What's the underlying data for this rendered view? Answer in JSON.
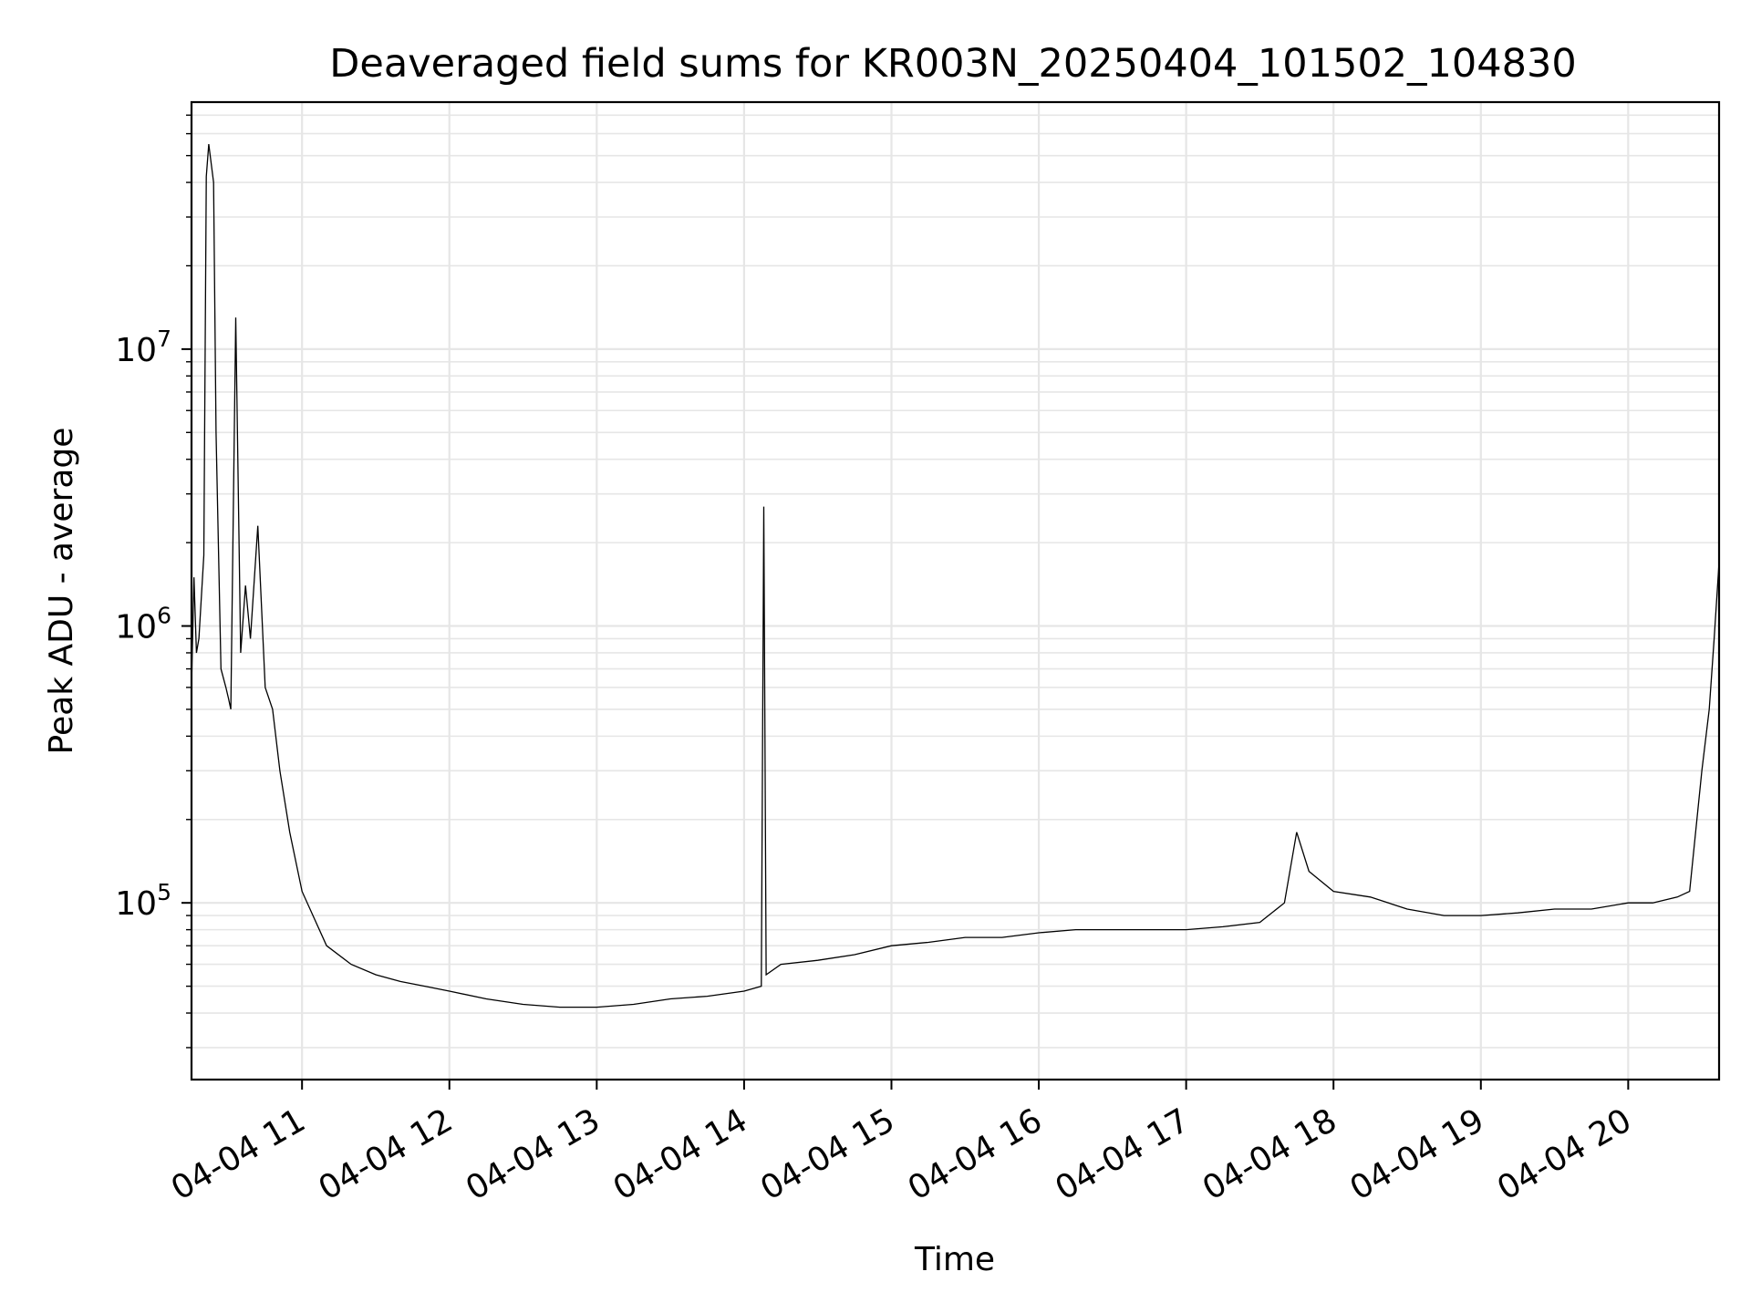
{
  "chart_data": {
    "type": "line",
    "title": "Deaveraged field sums for KR003N_20250404_101502_104830",
    "xlabel": "Time",
    "ylabel": "Peak ADU - average",
    "yscale": "log",
    "ylim": [
      23000,
      78000000
    ],
    "xlim": [
      "04-04 10:15",
      "04-04 20:37"
    ],
    "grid": true,
    "line_color": "#000000",
    "x_ticks": [
      "04-04 11",
      "04-04 12",
      "04-04 13",
      "04-04 14",
      "04-04 15",
      "04-04 16",
      "04-04 17",
      "04-04 18",
      "04-04 19",
      "04-04 20"
    ],
    "y_ticks": [
      {
        "base": "10",
        "exp": "5",
        "value": 100000
      },
      {
        "base": "10",
        "exp": "6",
        "value": 1000000
      },
      {
        "base": "10",
        "exp": "7",
        "value": 10000000
      }
    ],
    "series": [
      {
        "x": [
          "04-04 10:15",
          "04-04 10:16",
          "04-04 10:17",
          "04-04 10:18",
          "04-04 10:20",
          "04-04 10:21",
          "04-04 10:22",
          "04-04 10:24",
          "04-04 10:25",
          "04-04 10:27",
          "04-04 10:29",
          "04-04 10:30",
          "04-04 10:31",
          "04-04 10:33",
          "04-04 10:35",
          "04-04 10:37",
          "04-04 10:39",
          "04-04 10:42",
          "04-04 10:45",
          "04-04 10:48",
          "04-04 10:51",
          "04-04 10:55",
          "04-04 11:00",
          "04-04 11:10",
          "04-04 11:20",
          "04-04 11:30",
          "04-04 11:40",
          "04-04 11:50",
          "04-04 12:00",
          "04-04 12:15",
          "04-04 12:30",
          "04-04 12:45",
          "04-04 13:00",
          "04-04 13:15",
          "04-04 13:30",
          "04-04 13:45",
          "04-04 14:00",
          "04-04 14:07",
          "04-04 14:08",
          "04-04 14:09",
          "04-04 14:15",
          "04-04 14:30",
          "04-04 14:45",
          "04-04 15:00",
          "04-04 15:15",
          "04-04 15:30",
          "04-04 15:45",
          "04-04 16:00",
          "04-04 16:15",
          "04-04 16:30",
          "04-04 16:45",
          "04-04 17:00",
          "04-04 17:15",
          "04-04 17:30",
          "04-04 17:40",
          "04-04 17:45",
          "04-04 17:50",
          "04-04 18:00",
          "04-04 18:15",
          "04-04 18:30",
          "04-04 18:45",
          "04-04 19:00",
          "04-04 19:15",
          "04-04 19:30",
          "04-04 19:45",
          "04-04 20:00",
          "04-04 20:10",
          "04-04 20:20",
          "04-04 20:25",
          "04-04 20:30",
          "04-04 20:33",
          "04-04 20:35",
          "04-04 20:37"
        ],
        "y": [
          600000,
          1500000,
          800000,
          900000,
          1800000,
          42000000,
          55000000,
          40000000,
          5000000,
          700000,
          600000,
          550000,
          500000,
          13000000,
          800000,
          1400000,
          900000,
          2300000,
          600000,
          500000,
          300000,
          180000,
          110000,
          70000,
          60000,
          55000,
          52000,
          50000,
          48000,
          45000,
          43000,
          42000,
          42000,
          43000,
          45000,
          46000,
          48000,
          50000,
          2700000,
          55000,
          60000,
          62000,
          65000,
          70000,
          72000,
          75000,
          75000,
          78000,
          80000,
          80000,
          80000,
          80000,
          82000,
          85000,
          100000,
          180000,
          130000,
          110000,
          105000,
          95000,
          90000,
          90000,
          92000,
          95000,
          95000,
          100000,
          100000,
          105000,
          110000,
          300000,
          500000,
          900000,
          1700000
        ]
      }
    ]
  }
}
